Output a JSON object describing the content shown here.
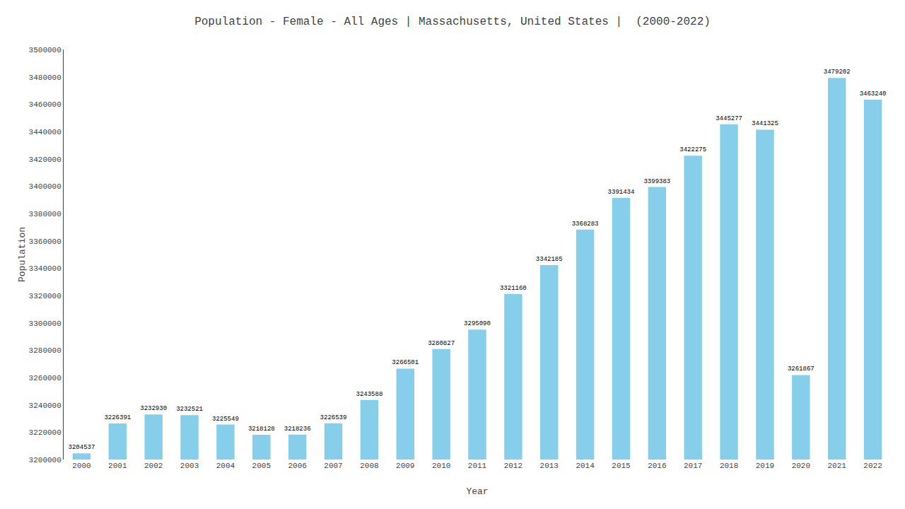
{
  "chart_data": {
    "type": "bar",
    "title": "Population - Female - All Ages | Massachusetts, United States |  (2000-2022)",
    "x_label": "Year",
    "y_label": "Population",
    "categories": [
      "2000",
      "2001",
      "2002",
      "2003",
      "2004",
      "2005",
      "2006",
      "2007",
      "2008",
      "2009",
      "2010",
      "2011",
      "2012",
      "2013",
      "2014",
      "2015",
      "2016",
      "2017",
      "2018",
      "2019",
      "2020",
      "2021",
      "2022"
    ],
    "values": [
      3204537,
      3226391,
      3232930,
      3232521,
      3225549,
      3218128,
      3218236,
      3226539,
      3243588,
      3266501,
      3280827,
      3295090,
      3321160,
      3342185,
      3368283,
      3391434,
      3399383,
      3422275,
      3445277,
      3441325,
      3261867,
      3479202,
      3463240
    ],
    "color": "#87CEEB",
    "ylim": [
      3200000,
      3500000
    ],
    "yticks": [
      3200000,
      3220000,
      3240000,
      3260000,
      3280000,
      3300000,
      3320000,
      3340000,
      3360000,
      3380000,
      3400000,
      3420000,
      3440000,
      3460000,
      3480000,
      3500000
    ],
    "grid": false,
    "data_labels": true
  }
}
